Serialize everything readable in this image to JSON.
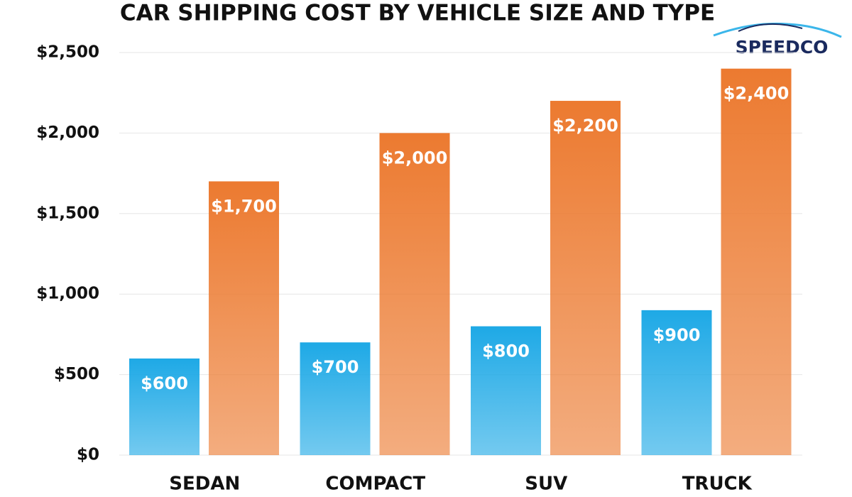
{
  "chart_data": {
    "type": "bar",
    "title": "CAR SHIPPING COST BY VEHICLE SIZE AND TYPE",
    "brand": "SPEEDCO",
    "categories": [
      "SEDAN",
      "COMPACT",
      "SUV",
      "TRUCK"
    ],
    "series": [
      {
        "color": "#1ea9e6",
        "values": [
          600,
          700,
          800,
          900
        ],
        "value_labels": [
          "$600",
          "$700",
          "$800",
          "$900"
        ]
      },
      {
        "color": "#ec7a30",
        "values": [
          1700,
          2000,
          2200,
          2400
        ],
        "value_labels": [
          "$1,700",
          "$2,000",
          "$2,200",
          "$2,400"
        ]
      }
    ],
    "ylim": [
      0,
      2500
    ],
    "yticks": [
      {
        "value": 0,
        "label": "$0"
      },
      {
        "value": 500,
        "label": "$500"
      },
      {
        "value": 1000,
        "label": "$1,000"
      },
      {
        "value": 1500,
        "label": "$1,500"
      },
      {
        "value": 2000,
        "label": "$2,000"
      },
      {
        "value": 2500,
        "label": "$2,500"
      }
    ],
    "grid": true
  }
}
